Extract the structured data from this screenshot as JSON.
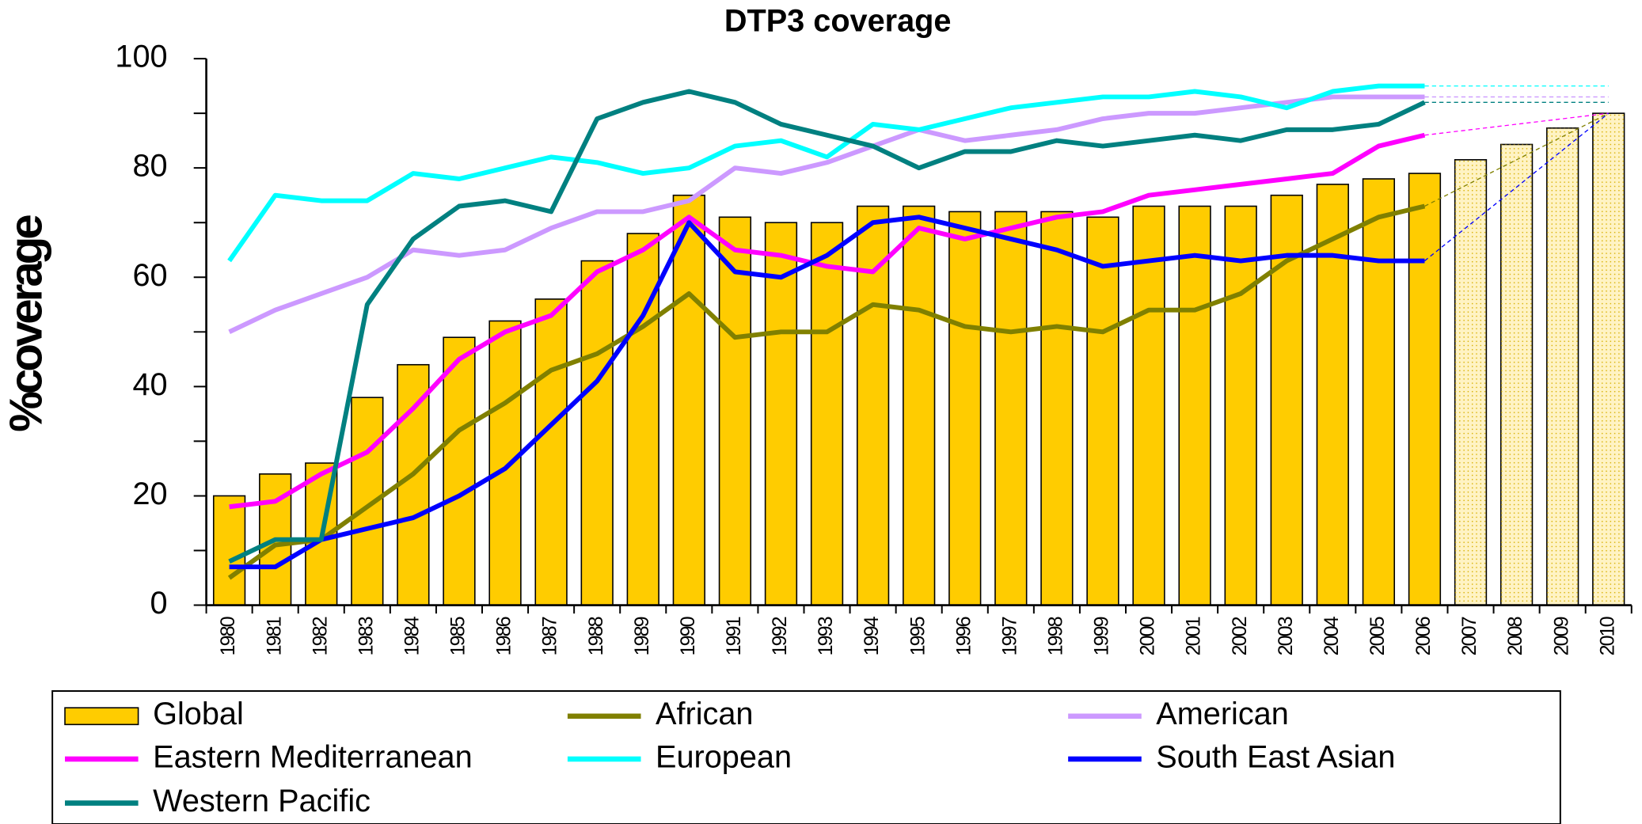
{
  "chart_data": {
    "type": "bar",
    "title": "DTP3 coverage",
    "y_label": "%coverage",
    "categories": [
      "1980",
      "1981",
      "1982",
      "1983",
      "1984",
      "1985",
      "1986",
      "1987",
      "1988",
      "1989",
      "1990",
      "1991",
      "1992",
      "1993",
      "1994",
      "1995",
      "1996",
      "1997",
      "1998",
      "1999",
      "2000",
      "2001",
      "2002",
      "2003",
      "2004",
      "2005",
      "2006",
      "2007",
      "2008",
      "2009",
      "2010"
    ],
    "ylim": [
      0,
      100
    ],
    "yticks": [
      0,
      20,
      40,
      60,
      80,
      100
    ],
    "legend": "bottom",
    "series": [
      {
        "name": "Global",
        "type": "bar",
        "color": "#ffcc00",
        "bar_colors": [
          "#ffcc00",
          "#ffcc00",
          "#ffcc00",
          "#ffcc00",
          "#ffcc00",
          "#ffcc00",
          "#ffcc00",
          "#ffcc00",
          "#ffcc00",
          "#ffcc00",
          "#ffcc00",
          "#ffcc00",
          "#ffcc00",
          "#ffcc00",
          "#ffcc00",
          "#ffcc00",
          "#ffcc00",
          "#ffcc00",
          "#ffcc00",
          "#ffcc00",
          "#ffcc00",
          "#ffcc00",
          "#ffcc00",
          "#ffcc00",
          "#ffcc00",
          "#ffcc00",
          "#ffcc00",
          "#fff3c4",
          "#fff3c4",
          "#fff3c4",
          "#fff3c4"
        ],
        "values": [
          20,
          24,
          26,
          38,
          44,
          49,
          52,
          56,
          63,
          68,
          75,
          71,
          70,
          70,
          73,
          73,
          72,
          72,
          72,
          71,
          73,
          73,
          73,
          75,
          77,
          78,
          79,
          81.5,
          84.3,
          87.3,
          90
        ]
      },
      {
        "name": "African",
        "type": "line",
        "color": "#808000",
        "target": 90,
        "values": [
          5,
          11,
          12,
          18,
          24,
          32,
          37,
          43,
          46,
          51,
          57,
          49,
          50,
          50,
          55,
          54,
          51,
          50,
          51,
          50,
          54,
          54,
          57,
          63,
          67,
          71,
          73,
          null,
          null,
          null,
          null
        ]
      },
      {
        "name": "American",
        "type": "line",
        "color": "#cc99ff",
        "target": 93,
        "values": [
          50,
          54,
          57,
          60,
          65,
          64,
          65,
          69,
          72,
          72,
          74,
          80,
          79,
          81,
          84,
          87,
          85,
          86,
          87,
          89,
          90,
          90,
          91,
          92,
          93,
          93,
          93,
          null,
          null,
          null,
          null
        ]
      },
      {
        "name": "Eastern Mediterranean",
        "type": "line",
        "color": "#ff00ff",
        "target": 90,
        "values": [
          18,
          19,
          24,
          28,
          36,
          45,
          50,
          53,
          61,
          65,
          71,
          65,
          64,
          62,
          61,
          69,
          67,
          69,
          71,
          72,
          75,
          76,
          77,
          78,
          79,
          84,
          86,
          null,
          null,
          null,
          null
        ]
      },
      {
        "name": "European",
        "type": "line",
        "color": "#00ffff",
        "target": 95,
        "values": [
          63,
          75,
          74,
          74,
          79,
          78,
          80,
          82,
          81,
          79,
          80,
          84,
          85,
          82,
          88,
          87,
          89,
          91,
          92,
          93,
          93,
          94,
          93,
          91,
          94,
          95,
          95,
          null,
          null,
          null,
          null
        ]
      },
      {
        "name": "South East Asian",
        "type": "line",
        "color": "#0000ff",
        "target": 90,
        "values": [
          7,
          7,
          12,
          14,
          16,
          20,
          25,
          33,
          41,
          53,
          70,
          61,
          60,
          64,
          70,
          71,
          69,
          67,
          65,
          62,
          63,
          64,
          63,
          64,
          64,
          63,
          63,
          null,
          null,
          null,
          null
        ]
      },
      {
        "name": "Western Pacific",
        "type": "line",
        "color": "#008080",
        "target": 92,
        "values": [
          8,
          12,
          12,
          55,
          67,
          73,
          74,
          72,
          89,
          92,
          94,
          92,
          88,
          86,
          84,
          80,
          83,
          83,
          85,
          84,
          85,
          86,
          85,
          87,
          87,
          88,
          92,
          null,
          null,
          null,
          null
        ]
      }
    ]
  }
}
